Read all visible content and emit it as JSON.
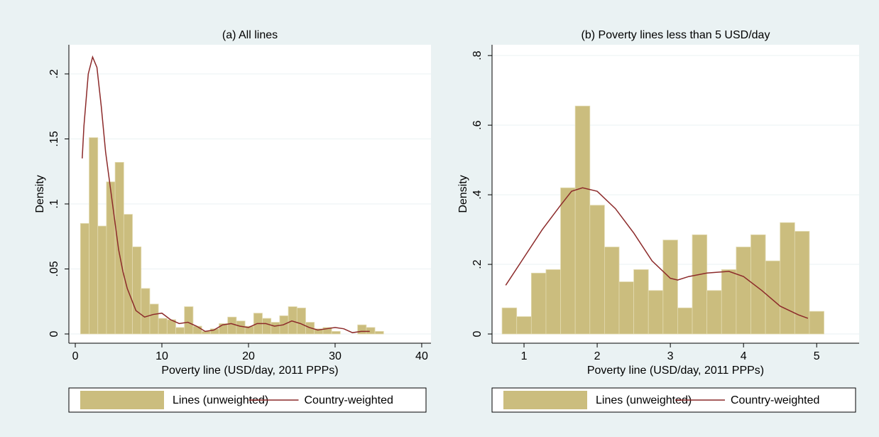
{
  "chart_data": [
    {
      "type": "histogram",
      "title": "(a) All lines",
      "xlabel": "Poverty line (USD/day, 2011 PPPs)",
      "ylabel": "Density",
      "xlim": [
        -0.74,
        41.07
      ],
      "ylim": [
        -0.0071,
        0.2224
      ],
      "xticks": [
        0,
        10,
        20,
        30,
        40
      ],
      "yticks": [
        0,
        {
          "value": 0.05,
          "label": ".05"
        },
        {
          "value": 0.1,
          "label": ".1"
        },
        {
          "value": 0.15,
          "label": ".15"
        },
        {
          "value": 0.2,
          "label": ".2"
        }
      ],
      "grid": true,
      "series": [
        {
          "name": "Lines (unweighted)",
          "type": "histogram",
          "color": "#cbbd7e",
          "bins": [
            0.6,
            1.6,
            2.6,
            3.6,
            4.6,
            5.6,
            6.6,
            7.6,
            8.6,
            9.6,
            10.6,
            11.6,
            12.6,
            13.6,
            14.6,
            15.6,
            16.6,
            17.6,
            18.6,
            19.6,
            20.6,
            21.6,
            22.6,
            23.6,
            24.6,
            25.6,
            26.6,
            27.6,
            28.6,
            29.6,
            30.6,
            31.6,
            32.6,
            33.6,
            34.6,
            35.6
          ],
          "values": [
            0.085,
            0.151,
            0.083,
            0.117,
            0.132,
            0.092,
            0.067,
            0.035,
            0.023,
            0.012,
            0.011,
            0.005,
            0.021,
            0.006,
            0.002,
            0.004,
            0.008,
            0.013,
            0.01,
            0.006,
            0.016,
            0.012,
            0.009,
            0.014,
            0.021,
            0.02,
            0.009,
            0.004,
            0.005,
            0.002,
            0.0,
            0.0,
            0.007,
            0.005,
            0.002
          ]
        },
        {
          "name": "Country-weighted",
          "type": "line",
          "color": "#8c2a2a",
          "x": [
            0.8,
            1,
            1.5,
            2,
            2.5,
            3,
            3.5,
            4,
            4.5,
            5,
            5.5,
            6,
            7,
            8,
            9,
            10,
            11,
            12,
            13,
            14,
            15,
            16,
            17,
            18,
            19,
            20,
            21,
            22,
            23,
            24,
            25,
            26,
            27,
            28,
            29,
            30,
            31,
            32,
            33,
            34
          ],
          "values": [
            0.135,
            0.16,
            0.2,
            0.213,
            0.205,
            0.175,
            0.14,
            0.115,
            0.09,
            0.065,
            0.048,
            0.035,
            0.018,
            0.013,
            0.015,
            0.016,
            0.011,
            0.008,
            0.009,
            0.006,
            0.002,
            0.003,
            0.007,
            0.008,
            0.006,
            0.005,
            0.008,
            0.008,
            0.006,
            0.007,
            0.01,
            0.008,
            0.005,
            0.003,
            0.004,
            0.005,
            0.004,
            0.001,
            0.002,
            0.002
          ]
        }
      ]
    },
    {
      "type": "histogram",
      "title": "(b) Poverty lines less than 5 USD/day",
      "xlabel": "Poverty line (USD/day, 2011 PPPs)",
      "ylabel": "Density",
      "xlim": [
        0.563,
        5.58
      ],
      "ylim": [
        -0.0265,
        0.831
      ],
      "xticks": [
        1,
        2,
        3,
        4,
        5
      ],
      "yticks": [
        0,
        {
          "value": 0.2,
          "label": ".2"
        },
        {
          "value": 0.4,
          "label": ".4"
        },
        {
          "value": 0.6,
          "label": ".6"
        },
        {
          "value": 0.8,
          "label": ".8"
        }
      ],
      "grid": true,
      "series": [
        {
          "name": "Lines (unweighted)",
          "type": "histogram",
          "color": "#cbbd7e",
          "bins": [
            0.7,
            0.9,
            1.1,
            1.3,
            1.5,
            1.7,
            1.9,
            2.1,
            2.3,
            2.5,
            2.7,
            2.9,
            3.1,
            3.3,
            3.5,
            3.7,
            3.9,
            4.1,
            4.3,
            4.5,
            4.7,
            4.9,
            5.1
          ],
          "values": [
            0.075,
            0.05,
            0.175,
            0.185,
            0.42,
            0.655,
            0.37,
            0.25,
            0.15,
            0.185,
            0.125,
            0.27,
            0.075,
            0.285,
            0.125,
            0.185,
            0.25,
            0.285,
            0.21,
            0.32,
            0.295,
            0.065
          ]
        },
        {
          "name": "Country-weighted",
          "type": "line",
          "color": "#8c2a2a",
          "x": [
            0.75,
            1,
            1.25,
            1.5,
            1.65,
            1.8,
            2,
            2.25,
            2.5,
            2.75,
            3,
            3.1,
            3.25,
            3.5,
            3.8,
            4,
            4.25,
            4.5,
            4.75,
            4.88
          ],
          "values": [
            0.14,
            0.22,
            0.3,
            0.37,
            0.41,
            0.42,
            0.41,
            0.36,
            0.29,
            0.21,
            0.16,
            0.155,
            0.165,
            0.175,
            0.18,
            0.165,
            0.125,
            0.08,
            0.055,
            0.045
          ]
        }
      ]
    }
  ]
}
